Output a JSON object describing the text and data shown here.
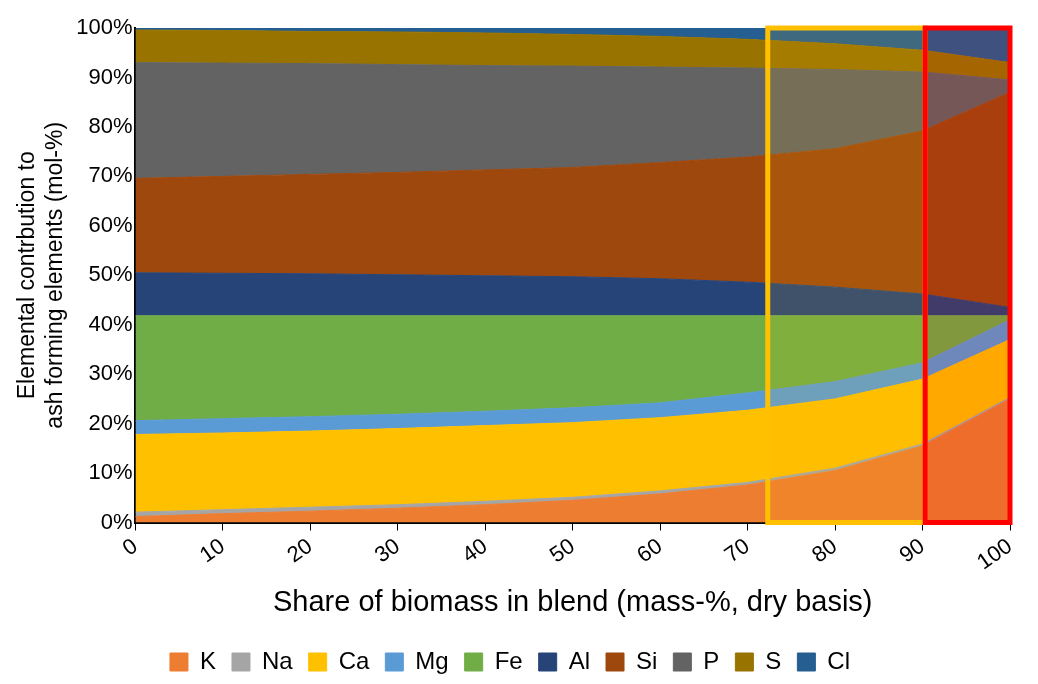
{
  "chart_data": {
    "type": "area",
    "stacked": true,
    "xlabel": "Share of biomass in blend (mass-%, dry basis)",
    "ylabel": "Elemental contrbution to ash forming elements (mol-%)",
    "x": [
      0,
      10,
      20,
      30,
      40,
      50,
      60,
      70,
      80,
      90,
      100
    ],
    "xlim": [
      0,
      100
    ],
    "xticks": [
      0,
      10,
      20,
      30,
      40,
      50,
      60,
      70,
      80,
      90,
      100
    ],
    "ylim": [
      0,
      100
    ],
    "yticks": [
      {
        "value": 0,
        "label": "0%"
      },
      {
        "value": 10,
        "label": "10%"
      },
      {
        "value": 20,
        "label": "20%"
      },
      {
        "value": 30,
        "label": "30%"
      },
      {
        "value": 40,
        "label": "40%"
      },
      {
        "value": 50,
        "label": "50%"
      },
      {
        "value": 60,
        "label": "60%"
      },
      {
        "value": 70,
        "label": "70%"
      },
      {
        "value": 80,
        "label": "80%"
      },
      {
        "value": 90,
        "label": "90%"
      },
      {
        "value": 100,
        "label": "100%"
      }
    ],
    "grid": false,
    "legend": "bottom",
    "series": [
      {
        "name": "K",
        "color": "#ed7d31",
        "values": [
          1.2,
          1.8,
          2.3,
          2.9,
          3.6,
          4.5,
          5.8,
          7.6,
          10.5,
          15.5,
          25
        ]
      },
      {
        "name": "Na",
        "color": "#a5a5a5",
        "values": [
          0.9,
          0.8,
          0.8,
          0.7,
          0.7,
          0.6,
          0.6,
          0.5,
          0.5,
          0.4,
          0.3
        ]
      },
      {
        "name": "Ca",
        "color": "#ffc000",
        "values": [
          15.7,
          15.5,
          15.4,
          15.4,
          15.3,
          15.1,
          14.8,
          14.6,
          14.0,
          13.1,
          11.7
        ]
      },
      {
        "name": "Mg",
        "color": "#5b9bd5",
        "values": [
          2.8,
          2.9,
          2.9,
          2.9,
          2.9,
          3.0,
          3.0,
          3.5,
          3.5,
          3.3,
          4.0
        ]
      },
      {
        "name": "Fe",
        "color": "#70ad47",
        "values": [
          21.2,
          20.8,
          20.4,
          19.9,
          19.3,
          18.6,
          17.6,
          15.6,
          13.3,
          9.5,
          0.8
        ]
      },
      {
        "name": "Al",
        "color": "#264478",
        "values": [
          8.7,
          8.6,
          8.5,
          8.3,
          8.1,
          7.9,
          7.5,
          6.8,
          5.8,
          4.4,
          1.7
        ]
      },
      {
        "name": "Si",
        "color": "#9e480e",
        "values": [
          19.1,
          19.6,
          20.1,
          20.7,
          21.4,
          22.1,
          23.5,
          25.3,
          28.0,
          33.0,
          43.5
        ]
      },
      {
        "name": "P",
        "color": "#636363",
        "values": [
          23.4,
          22.9,
          22.4,
          21.8,
          21.1,
          20.5,
          19.3,
          18.0,
          16.0,
          11.9,
          2.5
        ]
      },
      {
        "name": "S",
        "color": "#997300",
        "values": [
          6.6,
          6.6,
          6.5,
          6.6,
          6.6,
          6.4,
          6.2,
          5.8,
          5.2,
          4.4,
          3.5
        ]
      },
      {
        "name": "Cl",
        "color": "#255e91",
        "values": [
          0.4,
          0.5,
          0.7,
          0.8,
          1.0,
          1.3,
          1.7,
          2.3,
          3.2,
          4.5,
          7.0
        ]
      }
    ],
    "bands": [
      {
        "axis": "x",
        "from": 72.3,
        "to": 90.3,
        "color": "#ffc000"
      },
      {
        "axis": "x",
        "from": 90.3,
        "to": 100,
        "color": "#ff0000"
      }
    ]
  }
}
